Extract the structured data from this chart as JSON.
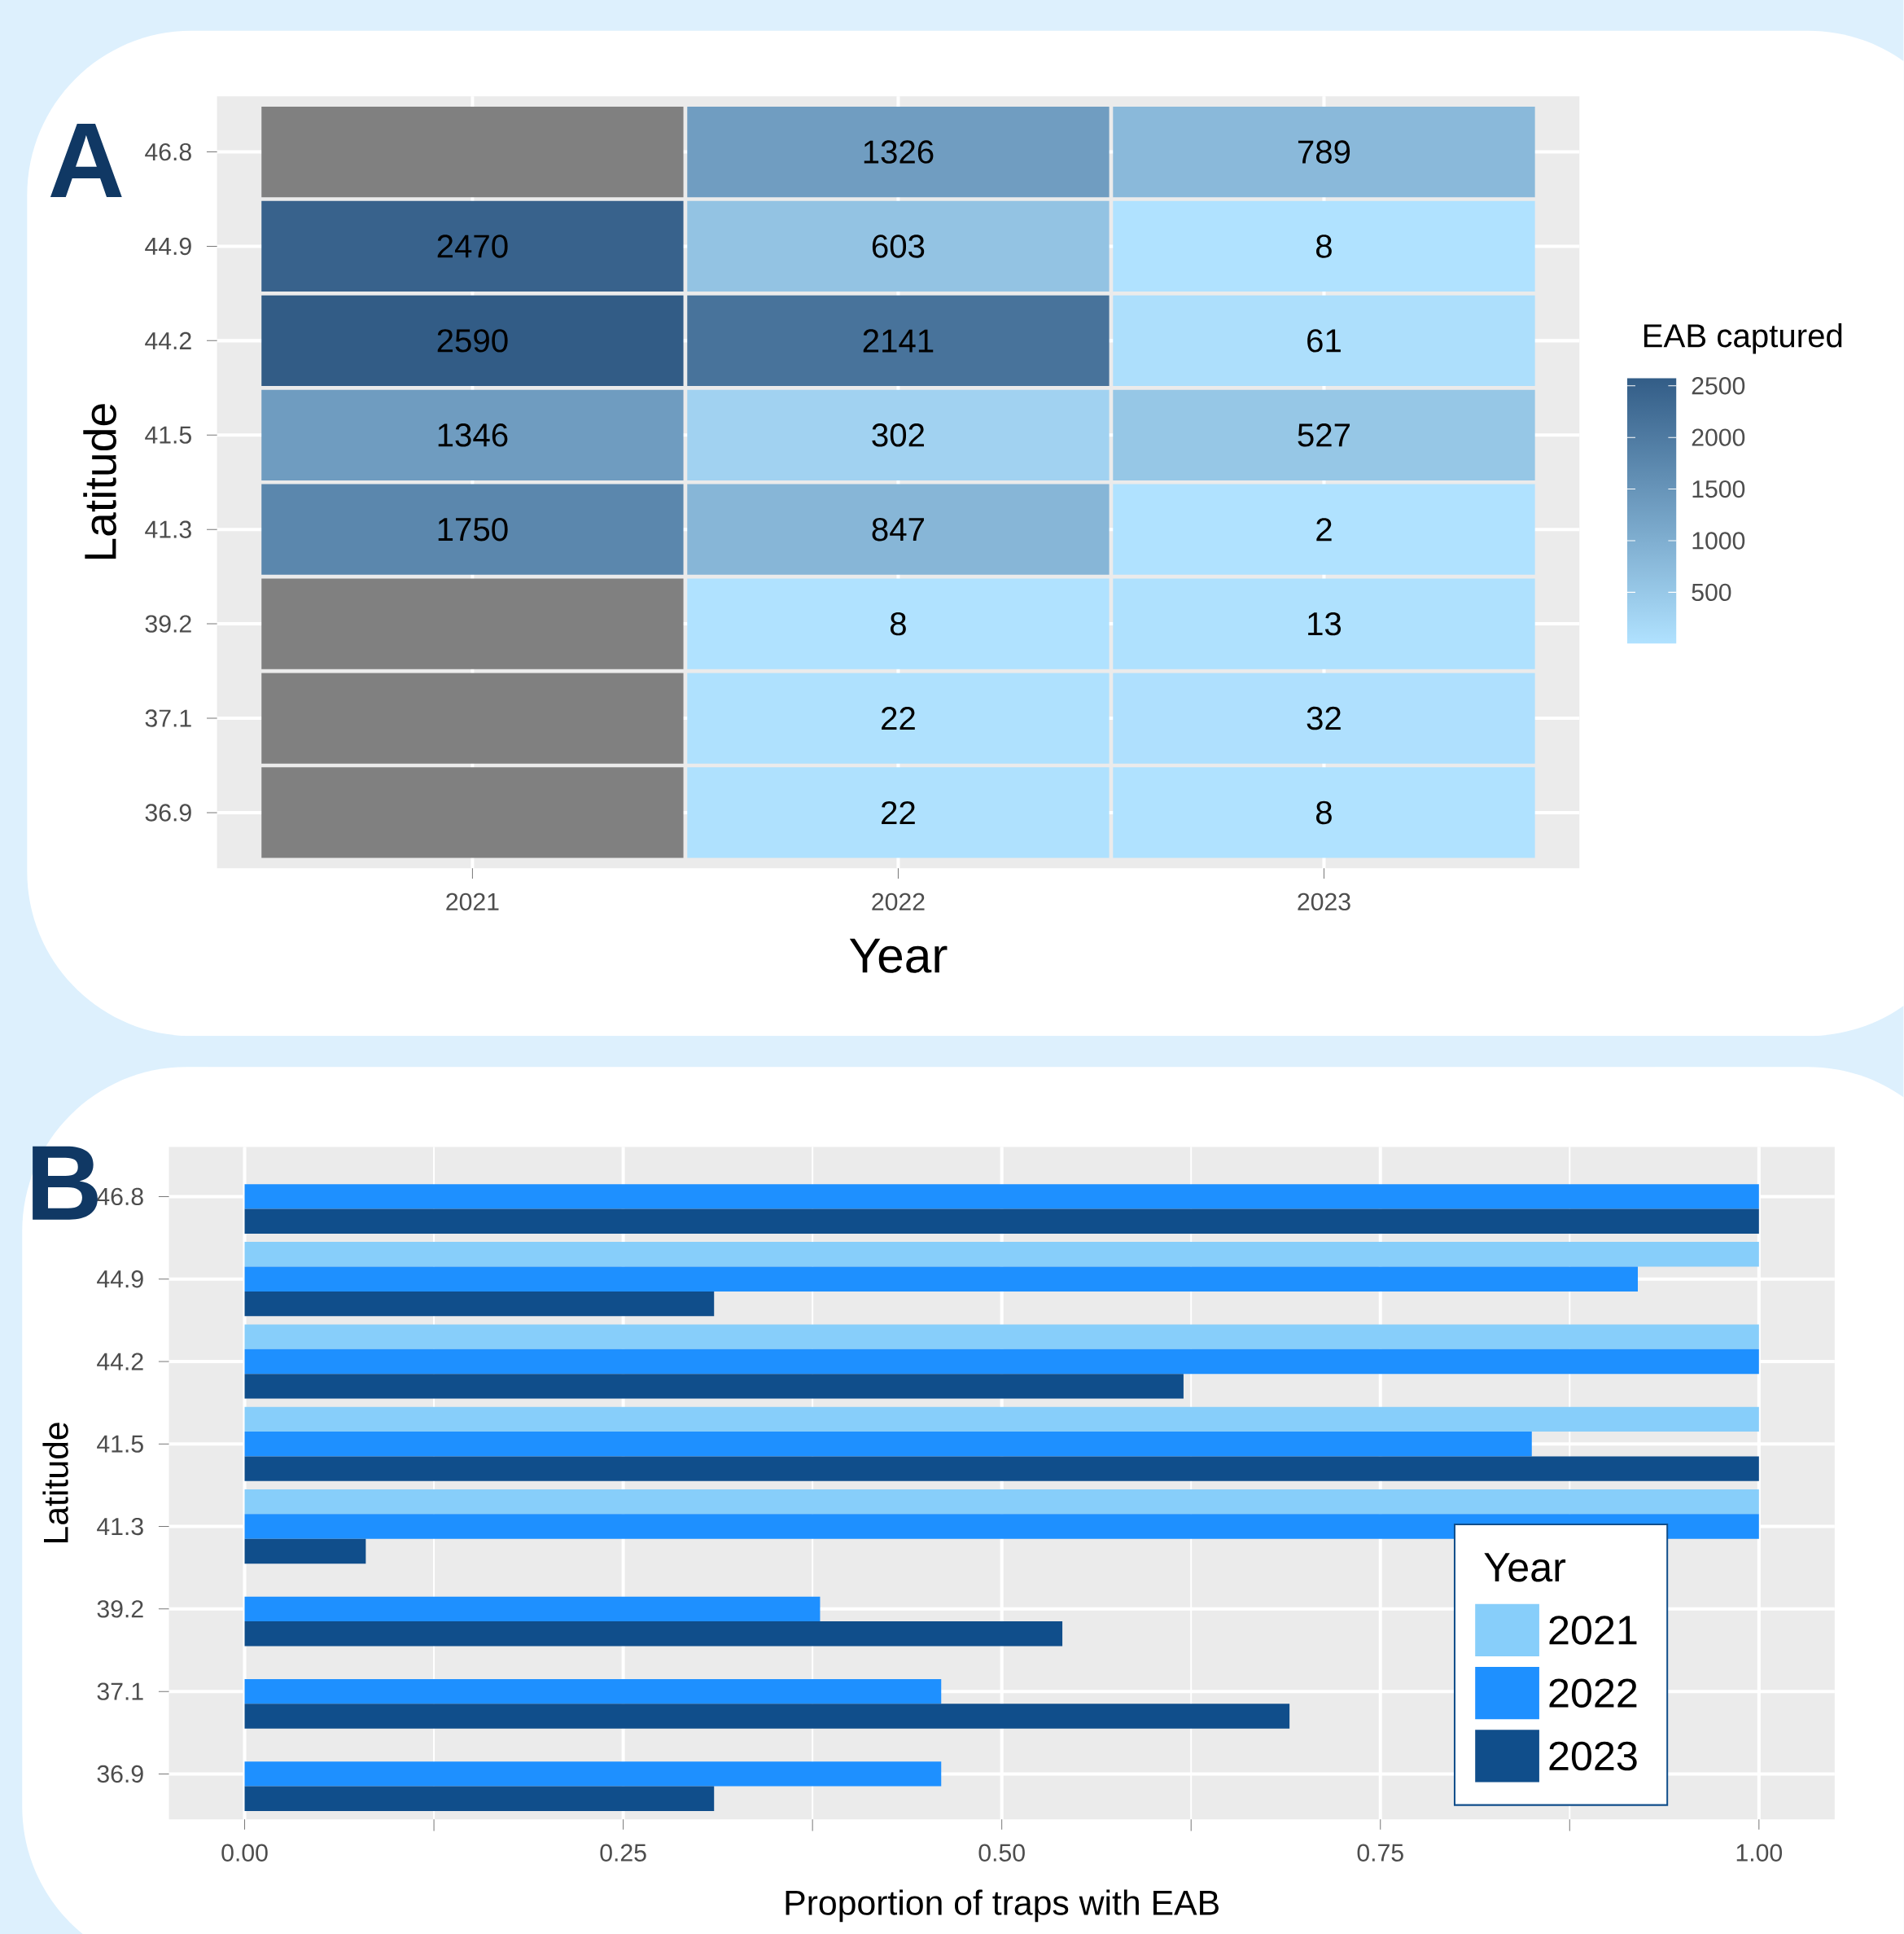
{
  "chart_data": [
    {
      "type": "heatmap",
      "title": "A",
      "xlabel": "Year",
      "ylabel": "Latitude",
      "clabel": "EAB captured",
      "categories": [
        "2021",
        "2022",
        "2023"
      ],
      "y_categories": [
        "46.8",
        "44.9",
        "44.2",
        "41.5",
        "41.3",
        "39.2",
        "37.1",
        "36.9"
      ],
      "cells": [
        [
          null,
          1326,
          789
        ],
        [
          2470,
          603,
          8
        ],
        [
          2590,
          2141,
          61
        ],
        [
          1346,
          302,
          527
        ],
        [
          1750,
          847,
          2
        ],
        [
          null,
          8,
          13
        ],
        [
          null,
          22,
          32
        ],
        [
          null,
          22,
          8
        ]
      ],
      "clim": [
        2,
        2590
      ],
      "cticks": [
        500,
        1000,
        1500,
        2000,
        2500
      ],
      "data_labels": true,
      "grid": true
    },
    {
      "type": "bar",
      "orientation": "horizontal",
      "title": "B",
      "xlabel": "Proportion of traps with EAB",
      "ylabel": "Latitude",
      "categories": [
        "46.8",
        "44.9",
        "44.2",
        "41.5",
        "41.3",
        "39.2",
        "37.1",
        "36.9"
      ],
      "xlim": [
        -0.05,
        1.05
      ],
      "xticks": [
        {
          "value": 0,
          "label": "0.00"
        },
        {
          "value": 0.25,
          "label": "0.25"
        },
        {
          "value": 0.5,
          "label": "0.50"
        },
        {
          "value": 0.75,
          "label": "0.75"
        },
        {
          "value": 1,
          "label": "1.00"
        }
      ],
      "grid": true,
      "legend": "bottom right",
      "legend_title": "Year",
      "series": [
        {
          "name": "2021",
          "color": "#87cefa",
          "values": [
            null,
            1,
            1,
            1,
            1,
            null,
            null,
            null
          ]
        },
        {
          "name": "2022",
          "color": "#1e90ff",
          "values": [
            1,
            0.92,
            1,
            0.85,
            1,
            0.38,
            0.46,
            0.46
          ]
        },
        {
          "name": "2023",
          "color": "#104e8b",
          "values": [
            1,
            0.31,
            0.62,
            1,
            0.08,
            0.54,
            0.69,
            0.31
          ]
        }
      ]
    }
  ]
}
